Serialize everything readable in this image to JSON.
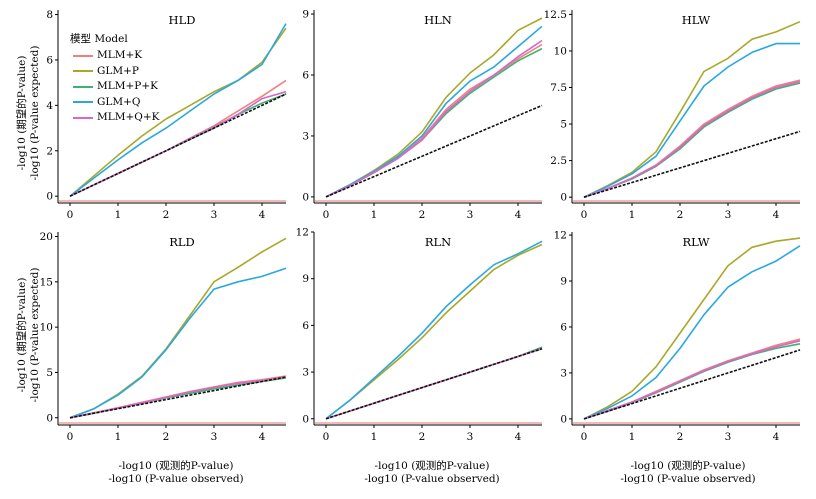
{
  "figure": {
    "ylabel_cn": "-log10 (期望的P-value)",
    "ylabel_en": "-log10 (P-value expected)",
    "xlabel_cn": "-log10 (观测的P-value)",
    "xlabel_en": "-log10 (P-value observed)"
  },
  "legend": {
    "title": "模型 Model",
    "items": [
      {
        "label": "MLM+K",
        "color": "#f08080"
      },
      {
        "label": "GLM+P",
        "color": "#a8a82a"
      },
      {
        "label": "MLM+P+K",
        "color": "#3cb371"
      },
      {
        "label": "GLM+Q",
        "color": "#29a8e0"
      },
      {
        "label": "MLM+Q+K",
        "color": "#d966c8"
      }
    ]
  },
  "chart_data": [
    {
      "type": "line",
      "title": "HLD",
      "xlim": [
        -0.25,
        4.5
      ],
      "ylim": [
        -0.3,
        8.2
      ],
      "xticks": [
        0,
        1,
        2,
        3,
        4
      ],
      "yticks": [
        0,
        2,
        4,
        6,
        8
      ],
      "x": [
        0,
        0.5,
        1,
        1.5,
        2,
        2.5,
        3,
        3.5,
        4,
        4.5
      ],
      "series": [
        {
          "name": "MLM+K",
          "values": [
            0,
            0.5,
            1.0,
            1.5,
            2.0,
            2.55,
            3.1,
            3.75,
            4.4,
            5.1
          ]
        },
        {
          "name": "GLM+P",
          "values": [
            0,
            0.9,
            1.8,
            2.65,
            3.4,
            4.0,
            4.6,
            5.1,
            5.9,
            7.4
          ]
        },
        {
          "name": "MLM+P+K",
          "values": [
            0,
            0.5,
            1.0,
            1.5,
            2.0,
            2.5,
            3.0,
            3.6,
            4.1,
            4.5
          ]
        },
        {
          "name": "GLM+Q",
          "values": [
            0,
            0.8,
            1.6,
            2.35,
            3.0,
            3.75,
            4.5,
            5.1,
            5.8,
            7.6
          ]
        },
        {
          "name": "MLM+Q+K",
          "values": [
            0,
            0.5,
            1.0,
            1.5,
            2.0,
            2.55,
            3.05,
            3.6,
            4.3,
            4.6
          ]
        },
        {
          "name": "expected",
          "values": [
            0,
            0.5,
            1.0,
            1.5,
            2.0,
            2.5,
            3.0,
            3.5,
            4.0,
            4.5
          ]
        }
      ]
    },
    {
      "type": "line",
      "title": "HLN",
      "xlim": [
        -0.25,
        4.5
      ],
      "ylim": [
        -0.3,
        9.2
      ],
      "xticks": [
        0,
        1,
        2,
        3,
        4
      ],
      "yticks": [
        0,
        3,
        6,
        9
      ],
      "x": [
        0,
        0.5,
        1,
        1.5,
        2,
        2.5,
        3,
        3.5,
        4,
        4.5
      ],
      "series": [
        {
          "name": "MLM+K",
          "values": [
            0,
            0.55,
            1.2,
            1.9,
            2.9,
            4.3,
            5.3,
            6.0,
            6.8,
            7.5
          ]
        },
        {
          "name": "GLM+P",
          "values": [
            0,
            0.6,
            1.3,
            2.1,
            3.2,
            4.9,
            6.1,
            7.0,
            8.2,
            8.8
          ]
        },
        {
          "name": "MLM+P+K",
          "values": [
            0,
            0.55,
            1.2,
            1.9,
            2.8,
            4.1,
            5.1,
            5.9,
            6.7,
            7.3
          ]
        },
        {
          "name": "GLM+Q",
          "values": [
            0,
            0.6,
            1.25,
            2.0,
            3.0,
            4.6,
            5.7,
            6.4,
            7.4,
            8.4
          ]
        },
        {
          "name": "MLM+Q+K",
          "values": [
            0,
            0.55,
            1.2,
            1.9,
            2.8,
            4.2,
            5.2,
            6.0,
            6.9,
            7.7
          ]
        },
        {
          "name": "expected",
          "values": [
            0,
            0.5,
            1.0,
            1.5,
            2.0,
            2.5,
            3.0,
            3.5,
            4.0,
            4.5
          ]
        }
      ]
    },
    {
      "type": "line",
      "title": "HLW",
      "xlim": [
        -0.25,
        4.5
      ],
      "ylim": [
        -0.4,
        12.8
      ],
      "xticks": [
        0,
        1,
        2,
        3,
        4
      ],
      "yticks": [
        0,
        2.5,
        5,
        7.5,
        10,
        12.5
      ],
      "x": [
        0,
        0.5,
        1,
        1.5,
        2,
        2.5,
        3,
        3.5,
        4,
        4.5
      ],
      "series": [
        {
          "name": "MLM+K",
          "values": [
            0,
            0.6,
            1.3,
            2.2,
            3.5,
            5.0,
            6.0,
            6.9,
            7.6,
            8.0
          ]
        },
        {
          "name": "GLM+P",
          "values": [
            0,
            0.8,
            1.7,
            3.1,
            5.8,
            8.6,
            9.5,
            10.8,
            11.3,
            12.0
          ]
        },
        {
          "name": "MLM+P+K",
          "values": [
            0,
            0.6,
            1.25,
            2.1,
            3.3,
            4.8,
            5.8,
            6.7,
            7.4,
            7.8
          ]
        },
        {
          "name": "GLM+Q",
          "values": [
            0,
            0.75,
            1.6,
            2.8,
            5.2,
            7.6,
            8.9,
            9.9,
            10.5,
            10.5
          ]
        },
        {
          "name": "MLM+Q+K",
          "values": [
            0,
            0.6,
            1.3,
            2.15,
            3.4,
            4.9,
            5.9,
            6.8,
            7.5,
            7.9
          ]
        },
        {
          "name": "expected",
          "values": [
            0,
            0.5,
            1.0,
            1.5,
            2.0,
            2.5,
            3.0,
            3.5,
            4.0,
            4.5
          ]
        }
      ]
    },
    {
      "type": "line",
      "title": "RLD",
      "xlim": [
        -0.25,
        4.5
      ],
      "ylim": [
        -0.8,
        20.5
      ],
      "xticks": [
        0,
        1,
        2,
        3,
        4
      ],
      "yticks": [
        0,
        5,
        10,
        15,
        20
      ],
      "x": [
        0,
        0.5,
        1,
        1.5,
        2,
        2.5,
        3,
        3.5,
        4,
        4.5
      ],
      "series": [
        {
          "name": "MLM+K",
          "values": [
            0,
            0.55,
            1.1,
            1.7,
            2.3,
            2.9,
            3.4,
            3.9,
            4.2,
            4.6
          ]
        },
        {
          "name": "GLM+P",
          "values": [
            0,
            1.0,
            2.6,
            4.6,
            7.6,
            11.3,
            15.0,
            16.6,
            18.3,
            19.8
          ]
        },
        {
          "name": "MLM+P+K",
          "values": [
            0,
            0.5,
            1.05,
            1.6,
            2.2,
            2.7,
            3.2,
            3.6,
            4.0,
            4.4
          ]
        },
        {
          "name": "GLM+Q",
          "values": [
            0,
            1.0,
            2.5,
            4.5,
            7.5,
            11.0,
            14.2,
            15.0,
            15.6,
            16.5
          ]
        },
        {
          "name": "MLM+Q+K",
          "values": [
            0,
            0.55,
            1.1,
            1.65,
            2.25,
            2.85,
            3.35,
            3.8,
            4.1,
            4.5
          ]
        },
        {
          "name": "expected",
          "values": [
            0,
            0.5,
            1.0,
            1.5,
            2.0,
            2.5,
            3.0,
            3.5,
            4.0,
            4.5
          ]
        }
      ]
    },
    {
      "type": "line",
      "title": "RLN",
      "xlim": [
        -0.25,
        4.5
      ],
      "ylim": [
        -0.4,
        12.0
      ],
      "xticks": [
        0,
        1,
        2,
        3,
        4
      ],
      "yticks": [
        0,
        3,
        6,
        9,
        12
      ],
      "x": [
        0,
        0.5,
        1,
        1.5,
        2,
        2.5,
        3,
        3.5,
        4,
        4.5
      ],
      "series": [
        {
          "name": "MLM+K",
          "values": [
            0,
            0.5,
            1.0,
            1.5,
            2.0,
            2.5,
            3.0,
            3.5,
            4.0,
            4.6
          ]
        },
        {
          "name": "GLM+P",
          "values": [
            0,
            1.2,
            2.5,
            3.8,
            5.2,
            6.8,
            8.2,
            9.6,
            10.5,
            11.2
          ]
        },
        {
          "name": "MLM+P+K",
          "values": [
            0,
            0.5,
            1.0,
            1.5,
            2.0,
            2.5,
            3.0,
            3.5,
            4.0,
            4.6
          ]
        },
        {
          "name": "GLM+Q",
          "values": [
            0,
            1.2,
            2.6,
            4.0,
            5.5,
            7.2,
            8.6,
            9.9,
            10.6,
            11.4
          ]
        },
        {
          "name": "MLM+Q+K",
          "values": [
            0,
            0.5,
            1.0,
            1.5,
            2.0,
            2.5,
            3.0,
            3.5,
            4.0,
            4.5
          ]
        },
        {
          "name": "expected",
          "values": [
            0,
            0.5,
            1.0,
            1.5,
            2.0,
            2.5,
            3.0,
            3.5,
            4.0,
            4.5
          ]
        }
      ]
    },
    {
      "type": "line",
      "title": "RLW",
      "xlim": [
        -0.25,
        4.5
      ],
      "ylim": [
        -0.4,
        12.2
      ],
      "xticks": [
        0,
        1,
        2,
        3,
        4
      ],
      "yticks": [
        0,
        3,
        6,
        9,
        12
      ],
      "x": [
        0,
        0.5,
        1,
        1.5,
        2,
        2.5,
        3,
        3.5,
        4,
        4.5
      ],
      "series": [
        {
          "name": "MLM+K",
          "values": [
            0,
            0.55,
            1.1,
            1.8,
            2.5,
            3.2,
            3.8,
            4.3,
            4.8,
            5.2
          ]
        },
        {
          "name": "GLM+P",
          "values": [
            0,
            0.8,
            1.8,
            3.4,
            5.6,
            7.8,
            10.0,
            11.2,
            11.6,
            11.8
          ]
        },
        {
          "name": "MLM+P+K",
          "values": [
            0,
            0.5,
            1.05,
            1.7,
            2.4,
            3.1,
            3.7,
            4.2,
            4.6,
            4.9
          ]
        },
        {
          "name": "GLM+Q",
          "values": [
            0,
            0.7,
            1.5,
            2.7,
            4.6,
            6.8,
            8.6,
            9.6,
            10.3,
            11.3
          ]
        },
        {
          "name": "MLM+Q+K",
          "values": [
            0,
            0.55,
            1.1,
            1.75,
            2.45,
            3.15,
            3.75,
            4.25,
            4.7,
            5.1
          ]
        },
        {
          "name": "expected",
          "values": [
            0,
            0.5,
            1.0,
            1.5,
            2.0,
            2.5,
            3.0,
            3.5,
            4.0,
            4.5
          ]
        }
      ]
    }
  ]
}
